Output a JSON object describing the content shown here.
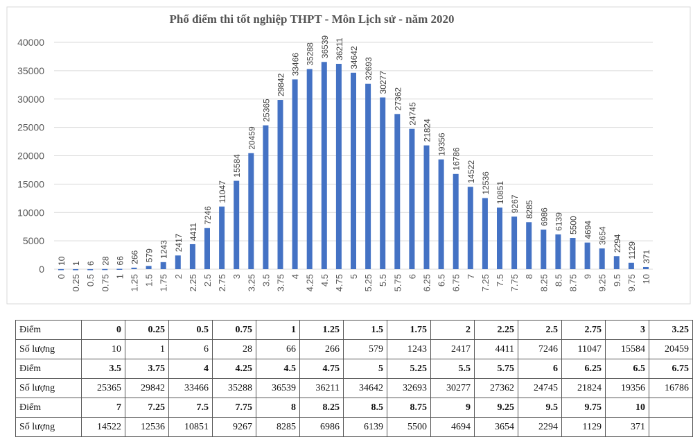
{
  "chart_data": {
    "type": "bar",
    "title": "Phổ điểm thi tốt nghiệp THPT - Môn Lịch sử - năm 2020",
    "xlabel": "",
    "ylabel": "",
    "ylim": [
      0,
      40000
    ],
    "yticks": [
      "0",
      "5000",
      "10000",
      "15000",
      "20000",
      "25000",
      "30000",
      "35000",
      "40000"
    ],
    "grid": true,
    "bar_color": "#4472c4",
    "categories": [
      "0",
      "0.25",
      "0.5",
      "0.75",
      "1",
      "1.25",
      "1.5",
      "1.75",
      "2",
      "2.25",
      "2.5",
      "2.75",
      "3",
      "3.25",
      "3.5",
      "3.75",
      "4",
      "4.25",
      "4.5",
      "4.75",
      "5",
      "5.25",
      "5.5",
      "5.75",
      "6",
      "6.25",
      "6.5",
      "6.75",
      "7",
      "7.25",
      "7.5",
      "7.75",
      "8",
      "8.25",
      "8.5",
      "8.75",
      "9",
      "9.25",
      "9.5",
      "9.75",
      "10"
    ],
    "values": [
      10,
      1,
      6,
      28,
      66,
      266,
      579,
      1243,
      2417,
      4411,
      7246,
      11047,
      15584,
      20459,
      25365,
      29842,
      33466,
      35288,
      36539,
      36211,
      34642,
      32693,
      30277,
      27362,
      24745,
      21824,
      19356,
      16786,
      14522,
      12536,
      10851,
      9267,
      8285,
      6986,
      6139,
      5500,
      4694,
      3654,
      2294,
      1129,
      371
    ]
  },
  "table": {
    "score_label": "Điểm",
    "count_label": "Số lượng",
    "columns_per_row": 14
  }
}
